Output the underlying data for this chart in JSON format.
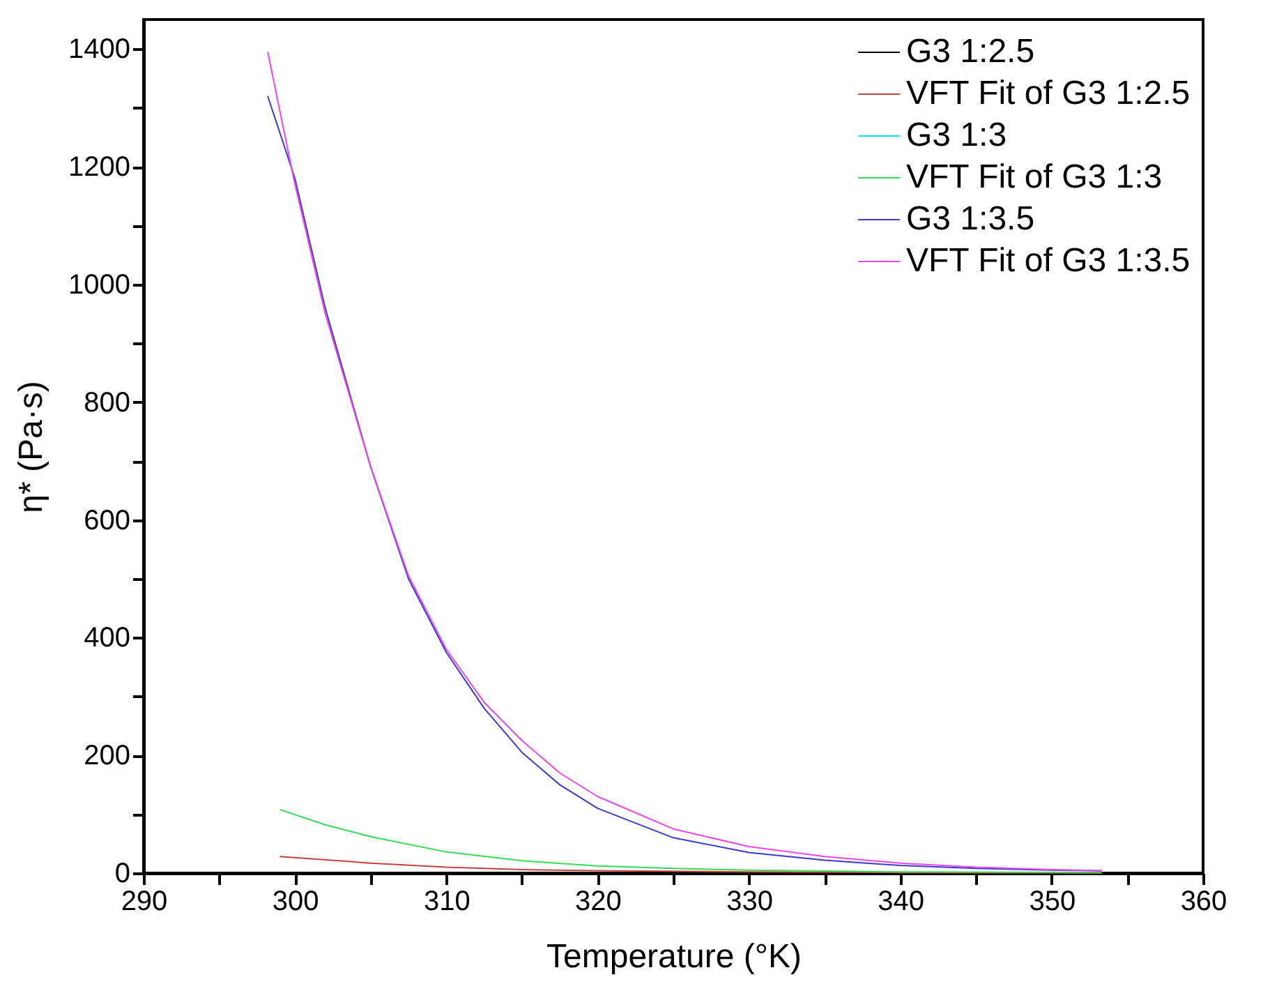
{
  "chart_data": {
    "type": "line",
    "xlabel": "Temperature (°K)",
    "ylabel": "η* (Pa·s)",
    "xlim": [
      290,
      360
    ],
    "ylim": [
      0,
      1450
    ],
    "xticks": [
      290,
      {
        "value": 295,
        "label": null
      },
      300,
      {
        "value": 305,
        "label": null
      },
      310,
      {
        "value": 315,
        "label": null
      },
      320,
      {
        "value": 325,
        "label": null
      },
      330,
      {
        "value": 335,
        "label": null
      },
      340,
      {
        "value": 345,
        "label": null
      },
      350,
      {
        "value": 355,
        "label": null
      },
      360
    ],
    "yticks": [
      0,
      {
        "value": 100,
        "label": null
      },
      200,
      {
        "value": 300,
        "label": null
      },
      400,
      {
        "value": 500,
        "label": null
      },
      600,
      {
        "value": 700,
        "label": null
      },
      800,
      {
        "value": 900,
        "label": null
      },
      1000,
      {
        "value": 1100,
        "label": null
      },
      1200,
      {
        "value": 1300,
        "label": null
      },
      1400
    ],
    "grid": false,
    "legend": "top right",
    "marker": "none",
    "line_style": "solid",
    "series": [
      {
        "name": "G3 1:2.5",
        "color": "#000000"
      },
      {
        "name": "VFT Fit of G3 1:2.5",
        "color": "#c84040",
        "x": [
          299,
          305,
          310,
          315,
          320,
          330,
          340,
          353.3
        ],
        "values": [
          28,
          17,
          10,
          6,
          4,
          2,
          1,
          0
        ]
      },
      {
        "name": "G3 1:3",
        "color": "#00e5e5"
      },
      {
        "name": "VFT Fit of G3 1:3",
        "color": "#33dd55",
        "x": [
          299,
          302,
          305,
          310,
          315,
          320,
          325,
          330,
          340,
          353.3
        ],
        "values": [
          108,
          82,
          62,
          36,
          21,
          12,
          8,
          5,
          2,
          1
        ]
      },
      {
        "name": "G3 1:3.5",
        "color": "#3a3acc",
        "x": [
          298.2,
          300,
          302,
          305,
          307.5,
          310,
          312.5,
          315,
          317.5,
          320,
          325,
          330,
          335,
          340,
          345,
          350,
          353.3
        ],
        "values": [
          1320,
          1180,
          960,
          690,
          500,
          375,
          280,
          205,
          150,
          110,
          60,
          35,
          22,
          13,
          8,
          5,
          4
        ]
      },
      {
        "name": "VFT Fit of G3 1:3.5",
        "color": "#ee44ee",
        "x": [
          298.2,
          300,
          302,
          305,
          307.5,
          310,
          312.5,
          315,
          317.5,
          320,
          325,
          330,
          335,
          340,
          345,
          350,
          353.3
        ],
        "values": [
          1395,
          1170,
          950,
          690,
          505,
          380,
          290,
          225,
          170,
          130,
          75,
          45,
          28,
          17,
          10,
          6,
          4
        ]
      }
    ]
  }
}
